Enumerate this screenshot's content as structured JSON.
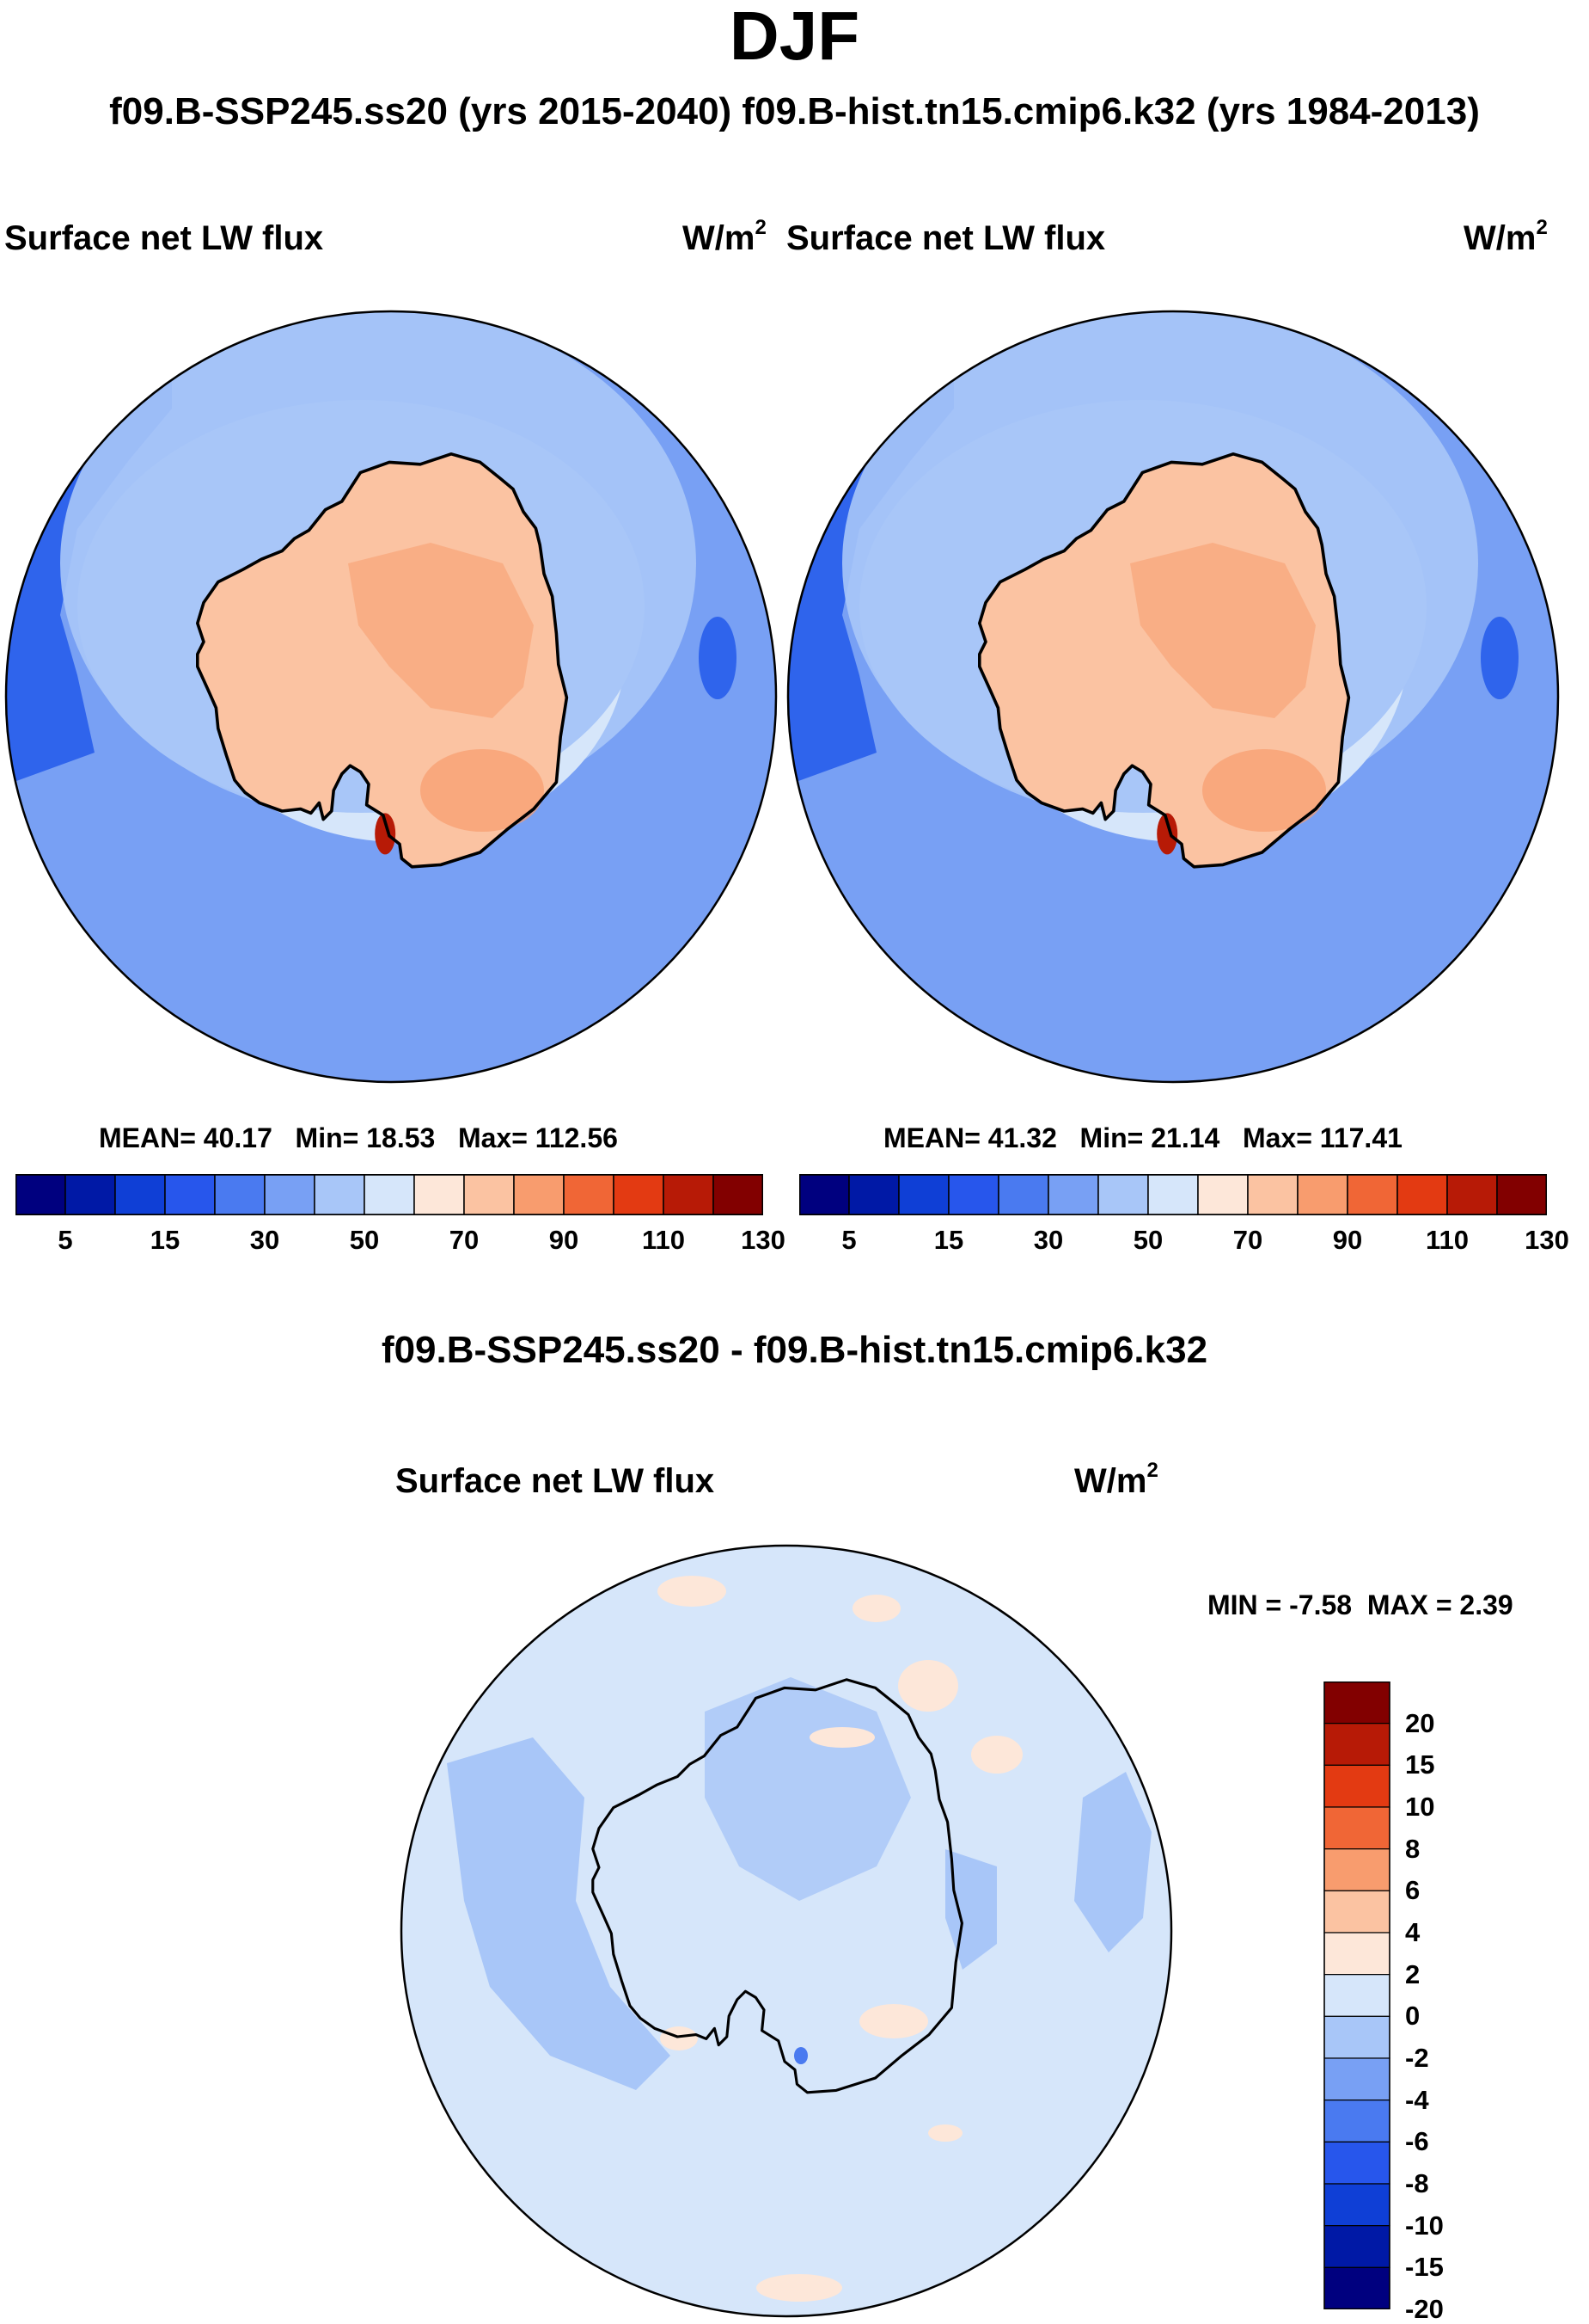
{
  "title": "DJF",
  "subtitle": "f09.B-SSP245.ss20 (yrs 2015-2040)  f09.B-hist.tn15.cmip6.k32 (yrs 1984-2013)",
  "diff_title": "f09.B-SSP245.ss20 - f09.B-hist.tn15.cmip6.k32",
  "colors": {
    "abs": [
      "#00007f",
      "#0019a6",
      "#0f3fd6",
      "#2756ec",
      "#4a7af0",
      "#78a0f4",
      "#a8c6f8",
      "#d6e6fa",
      "#fde7d9",
      "#fbc3a2",
      "#f89c6e",
      "#f06636",
      "#e33a12",
      "#b71a06",
      "#820000"
    ],
    "diff": [
      "#00007f",
      "#0019a6",
      "#0f3fd6",
      "#2756ec",
      "#4a7af0",
      "#78a0f4",
      "#a8c6f8",
      "#d6e6fa",
      "#fde7d9",
      "#fbc3a2",
      "#f89c6e",
      "#f06636",
      "#e33a12",
      "#b71a06",
      "#820000"
    ],
    "coast": "#000000"
  },
  "chart_data": [
    {
      "type": "heatmap",
      "projection": "south-polar-stereographic",
      "title": "Surface net LW flux",
      "units_base": "W/m",
      "units_exp": "2",
      "stats": {
        "mean": "MEAN=  40.17",
        "min": "Min=  18.53",
        "max": "Max= 112.56"
      },
      "colorbar": {
        "orientation": "horizontal",
        "levels": [
          5,
          10,
          15,
          20,
          30,
          40,
          50,
          60,
          70,
          80,
          90,
          100,
          110,
          120,
          130
        ],
        "tick_labels": [
          "5",
          "15",
          "30",
          "50",
          "70",
          "90",
          "110",
          "130"
        ]
      },
      "fields": {
        "ocean_north": 30,
        "ocean_south": 30,
        "sea_ice_zone": 50,
        "continent": 70,
        "continent_high": 80,
        "peak": 112.56
      }
    },
    {
      "type": "heatmap",
      "projection": "south-polar-stereographic",
      "title": "Surface net LW flux",
      "units_base": "W/m",
      "units_exp": "2",
      "stats": {
        "mean": "MEAN=  41.32",
        "min": "Min=  21.14",
        "max": "Max= 117.41"
      },
      "colorbar": {
        "orientation": "horizontal",
        "levels": [
          5,
          10,
          15,
          20,
          30,
          40,
          50,
          60,
          70,
          80,
          90,
          100,
          110,
          120,
          130
        ],
        "tick_labels": [
          "5",
          "15",
          "30",
          "50",
          "70",
          "90",
          "110",
          "130"
        ]
      },
      "fields": {
        "ocean_north": 30,
        "ocean_south": 30,
        "sea_ice_zone": 50,
        "continent": 70,
        "continent_high": 80,
        "peak": 117.41
      }
    },
    {
      "type": "heatmap",
      "projection": "south-polar-stereographic",
      "title": "Surface net LW flux",
      "units_base": "W/m",
      "units_exp": "2",
      "stats": {
        "min": "MIN =  -7.58",
        "max": "MAX =   2.39"
      },
      "colorbar": {
        "orientation": "vertical",
        "tick_labels": [
          "20",
          "15",
          "10",
          "8",
          "6",
          "4",
          "2",
          "0",
          "-2",
          "-4",
          "-6",
          "-8",
          "-10",
          "-15",
          "-20"
        ]
      },
      "fields": {
        "background": -1,
        "coastal_decrease": -3,
        "local_min": -7.58,
        "positive_patches": 1,
        "local_max": 2.39
      }
    }
  ]
}
